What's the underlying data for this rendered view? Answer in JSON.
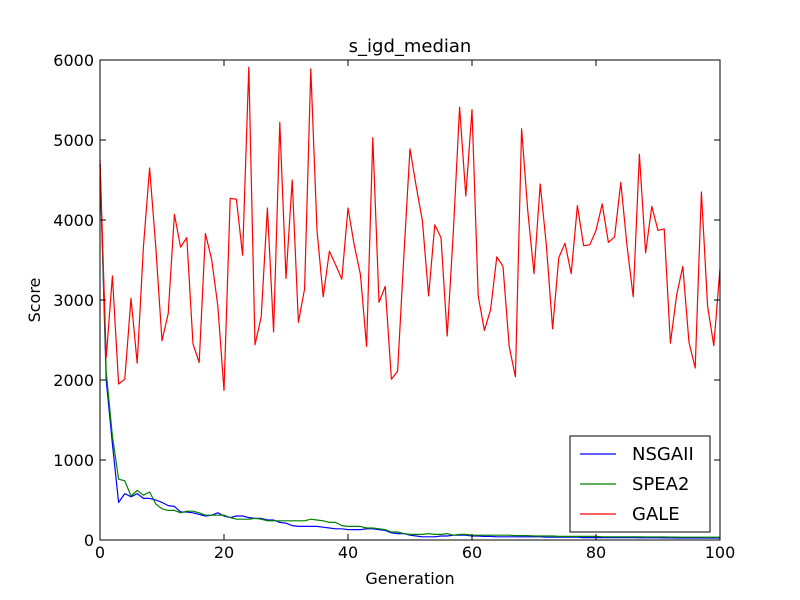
{
  "chart_data": {
    "type": "line",
    "title": "s_igd_median",
    "xlabel": "Generation",
    "ylabel": "Score",
    "xlim": [
      0,
      100
    ],
    "ylim": [
      0,
      6000
    ],
    "xticks": [
      "0",
      "20",
      "40",
      "60",
      "80",
      "100"
    ],
    "yticks": [
      "0",
      "1000",
      "2000",
      "3000",
      "4000",
      "5000",
      "6000"
    ],
    "grid": false,
    "legend": "lower-right",
    "x": [
      0,
      1,
      2,
      3,
      4,
      5,
      6,
      7,
      8,
      9,
      10,
      11,
      12,
      13,
      14,
      15,
      16,
      17,
      18,
      19,
      20,
      21,
      22,
      23,
      24,
      25,
      26,
      27,
      28,
      29,
      30,
      31,
      32,
      33,
      34,
      35,
      36,
      37,
      38,
      39,
      40,
      41,
      42,
      43,
      44,
      45,
      46,
      47,
      48,
      49,
      50,
      51,
      52,
      53,
      54,
      55,
      56,
      57,
      58,
      59,
      60,
      61,
      62,
      63,
      64,
      65,
      66,
      67,
      68,
      69,
      70,
      71,
      72,
      73,
      74,
      75,
      76,
      77,
      78,
      79,
      80,
      81,
      82,
      83,
      84,
      85,
      86,
      87,
      88,
      89,
      90,
      91,
      92,
      93,
      94,
      95,
      96,
      97,
      98,
      99,
      100
    ],
    "series": [
      {
        "name": "NSGAII",
        "color": "#0000ff",
        "values": [
          4700,
          2000,
          1200,
          470,
          580,
          540,
          580,
          520,
          520,
          500,
          470,
          430,
          420,
          350,
          350,
          340,
          320,
          300,
          310,
          340,
          300,
          280,
          300,
          300,
          280,
          270,
          270,
          250,
          250,
          220,
          210,
          180,
          170,
          170,
          170,
          170,
          160,
          150,
          140,
          140,
          130,
          130,
          130,
          140,
          140,
          130,
          120,
          90,
          80,
          80,
          60,
          50,
          40,
          40,
          40,
          50,
          50,
          60,
          60,
          60,
          50,
          50,
          45,
          45,
          40,
          40,
          40,
          40,
          40,
          40,
          40,
          40,
          35,
          35,
          35,
          35,
          35,
          35,
          30,
          30,
          30,
          30,
          30,
          30,
          30,
          30,
          30,
          28,
          28,
          28,
          28,
          26,
          26,
          25,
          25,
          25,
          24,
          24,
          24,
          24,
          24
        ]
      },
      {
        "name": "SPEA2",
        "color": "#008000",
        "values": [
          4700,
          2100,
          1300,
          760,
          740,
          550,
          620,
          560,
          600,
          450,
          390,
          370,
          370,
          340,
          360,
          360,
          340,
          310,
          310,
          310,
          310,
          280,
          260,
          260,
          260,
          270,
          260,
          240,
          240,
          240,
          240,
          240,
          240,
          240,
          260,
          250,
          240,
          220,
          220,
          180,
          170,
          170,
          170,
          150,
          150,
          140,
          130,
          100,
          100,
          80,
          70,
          70,
          70,
          80,
          70,
          70,
          80,
          60,
          70,
          70,
          60,
          60,
          60,
          60,
          60,
          60,
          60,
          55,
          55,
          55,
          50,
          50,
          50,
          50,
          45,
          45,
          45,
          45,
          45,
          45,
          45,
          40,
          40,
          40,
          40,
          40,
          40,
          40,
          38,
          38,
          38,
          38,
          36,
          36,
          35,
          35,
          35,
          35,
          34,
          34,
          34
        ]
      },
      {
        "name": "GALE",
        "color": "#ff0000",
        "values": [
          4750,
          2280,
          3300,
          1950,
          2010,
          3020,
          2210,
          3660,
          4650,
          3660,
          2490,
          2830,
          4070,
          3660,
          3780,
          2450,
          2220,
          3830,
          3510,
          2930,
          1870,
          4270,
          4260,
          3560,
          5910,
          2440,
          2790,
          4150,
          2600,
          5220,
          3270,
          4500,
          2720,
          3140,
          5890,
          3870,
          3040,
          3610,
          3440,
          3260,
          4150,
          3690,
          3320,
          2420,
          5030,
          2970,
          3170,
          2010,
          2110,
          3540,
          4890,
          4420,
          3990,
          3050,
          3940,
          3780,
          2550,
          3870,
          5410,
          4300,
          5380,
          3050,
          2620,
          2880,
          3540,
          3420,
          2420,
          2040,
          5140,
          4110,
          3330,
          4450,
          3680,
          2640,
          3530,
          3710,
          3330,
          4180,
          3680,
          3690,
          3870,
          4200,
          3720,
          3790,
          4470,
          3680,
          3040,
          4820,
          3590,
          4170,
          3870,
          3890,
          2460,
          3060,
          3420,
          2470,
          2150,
          4350,
          2920,
          2430,
          3390
        ]
      }
    ]
  }
}
